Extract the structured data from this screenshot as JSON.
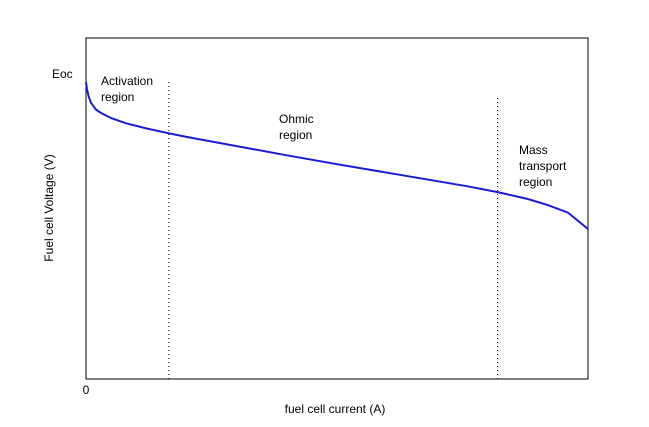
{
  "chart_data": {
    "type": "line",
    "title": "",
    "xlabel": "fuel cell current (A)",
    "ylabel": "Fuel cell Voltage (V)",
    "x_tick_labels": [
      "0"
    ],
    "y_tick_labels": [
      "Eoc"
    ],
    "xlim": [
      0,
      1
    ],
    "ylim": [
      0,
      1
    ],
    "grid": false,
    "series": [
      {
        "color": "#1a1ad6",
        "x": [
          0,
          0.002,
          0.005,
          0.01,
          0.02,
          0.03,
          0.05,
          0.08,
          0.12,
          0.16,
          0.2,
          0.3,
          0.4,
          0.5,
          0.6,
          0.7,
          0.76,
          0.82,
          0.88,
          0.92,
          0.96,
          1.0
        ],
        "y": [
          0.87,
          0.85,
          0.83,
          0.81,
          0.79,
          0.78,
          0.765,
          0.75,
          0.735,
          0.722,
          0.71,
          0.683,
          0.656,
          0.63,
          0.605,
          0.58,
          0.565,
          0.548,
          0.528,
          0.51,
          0.488,
          0.44
        ]
      }
    ],
    "vlines": [
      {
        "x": 0.165,
        "style": "dotted"
      },
      {
        "x": 0.82,
        "style": "dotted"
      }
    ],
    "annotations": [
      {
        "lines": [
          "Activation",
          "region"
        ]
      },
      {
        "lines": [
          "Ohmic",
          "region"
        ]
      },
      {
        "lines": [
          "Mass",
          "transport",
          "region"
        ]
      }
    ]
  }
}
